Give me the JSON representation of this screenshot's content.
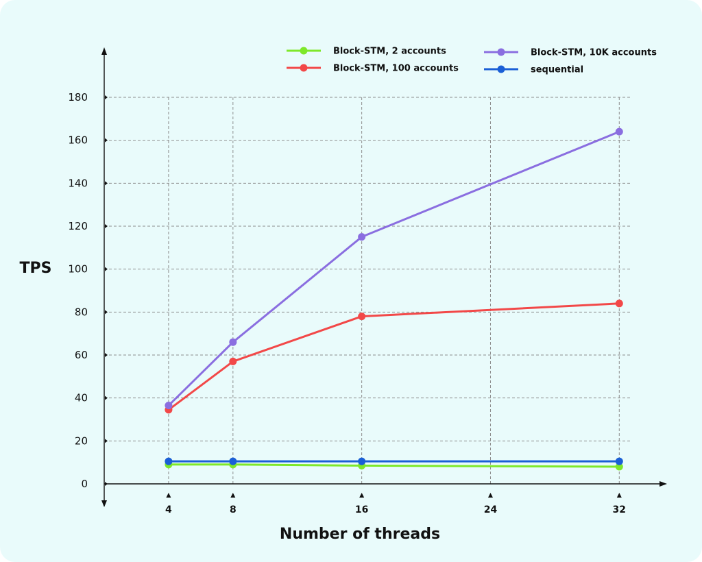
{
  "chart_data": {
    "type": "line",
    "title": "",
    "xlabel": "Number of threads",
    "ylabel": "TPS",
    "x": [
      4,
      8,
      16,
      24,
      32
    ],
    "x_ticks": [
      "4",
      "8",
      "16",
      "24",
      "32"
    ],
    "y_ticks": [
      "0",
      "20",
      "40",
      "60",
      "80",
      "100",
      "120",
      "140",
      "160",
      "180"
    ],
    "xlim": [
      0,
      34.5
    ],
    "ylim": [
      0,
      180
    ],
    "grid": true,
    "legend_position": "top-right",
    "series": [
      {
        "name": "Block-STM, 2 accounts",
        "color": "#7ee82a",
        "x": [
          4,
          8,
          16,
          32
        ],
        "values": [
          9,
          9,
          8.5,
          8
        ]
      },
      {
        "name": "Block-STM, 100 accounts",
        "color": "#f24848",
        "x": [
          4,
          8,
          16,
          32
        ],
        "values": [
          34.5,
          57,
          78,
          84
        ]
      },
      {
        "name": "Block-STM, 10K accounts",
        "color": "#8a6ee0",
        "x": [
          4,
          8,
          16,
          32
        ],
        "values": [
          36.5,
          66,
          115,
          164
        ]
      },
      {
        "name": "sequential",
        "color": "#1a5fd6",
        "x": [
          4,
          8,
          16,
          32
        ],
        "values": [
          10.5,
          10.5,
          10.5,
          10.5
        ]
      }
    ]
  }
}
